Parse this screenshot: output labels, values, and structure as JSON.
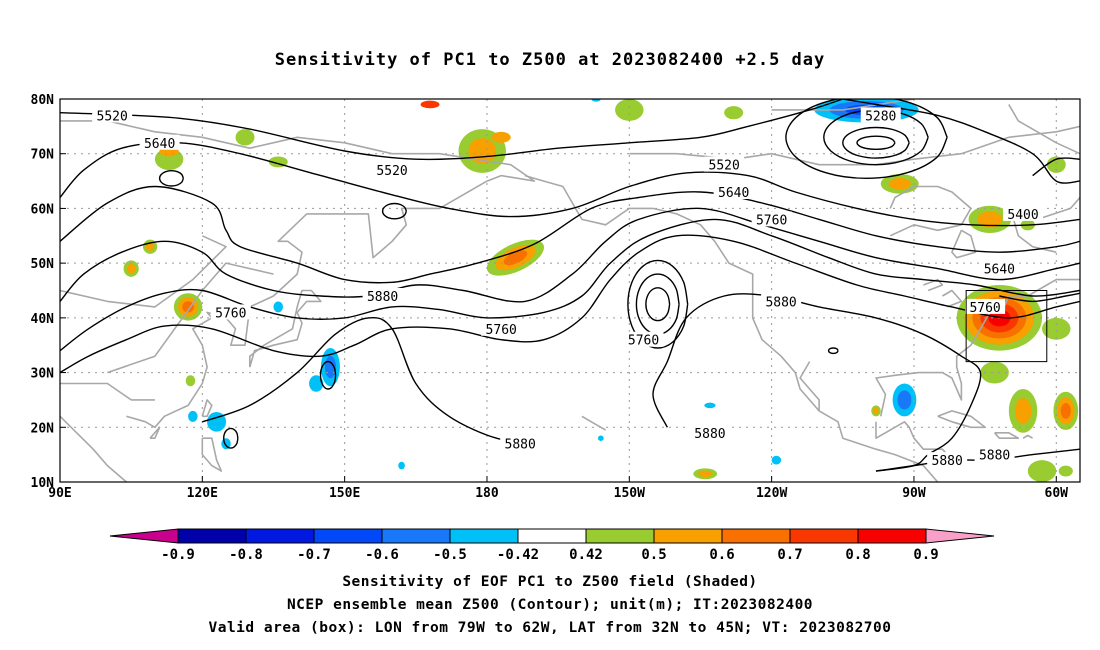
{
  "title": "Sensitivity of PC1 to Z500 at 2023082400 +2.5 day",
  "map": {
    "lon_range": [
      90,
      305
    ],
    "lat_range": [
      10,
      80
    ],
    "lat_ticks": [
      "80N",
      "70N",
      "60N",
      "50N",
      "40N",
      "30N",
      "20N",
      "10N"
    ],
    "lon_ticks": [
      "90E",
      "120E",
      "150E",
      "180",
      "150W",
      "120W",
      "90W",
      "60W"
    ],
    "valid_box": {
      "lon_west": -79,
      "lon_east": -62,
      "lat_south": 32,
      "lat_north": 45
    },
    "contour_labels": [
      {
        "text": "5520",
        "lon": 101,
        "lat": 77
      },
      {
        "text": "5640",
        "lon": 111,
        "lat": 72
      },
      {
        "text": "5520",
        "lon": 160,
        "lat": 67
      },
      {
        "text": "5520",
        "lon": 230,
        "lat": 68
      },
      {
        "text": "5640",
        "lon": 232,
        "lat": 63
      },
      {
        "text": "5760",
        "lon": 240,
        "lat": 58
      },
      {
        "text": "5280",
        "lon": 263,
        "lat": 77
      },
      {
        "text": "5400",
        "lon": 293,
        "lat": 59
      },
      {
        "text": "5640",
        "lon": 288,
        "lat": 49
      },
      {
        "text": "5760",
        "lon": 285,
        "lat": 42
      },
      {
        "text": "5880",
        "lon": 242,
        "lat": 43
      },
      {
        "text": "5880",
        "lon": 158,
        "lat": 44
      },
      {
        "text": "5760",
        "lon": 126,
        "lat": 41
      },
      {
        "text": "5760",
        "lon": 183,
        "lat": 38
      },
      {
        "text": "5760",
        "lon": 213,
        "lat": 36
      },
      {
        "text": "5880",
        "lon": 227,
        "lat": 19
      },
      {
        "text": "5880",
        "lon": 187,
        "lat": 17
      },
      {
        "text": "5880",
        "lon": 277,
        "lat": 14
      },
      {
        "text": "5880",
        "lon": 287,
        "lat": 15
      }
    ],
    "contour_color": "#000000",
    "coast_color": "#a8a8a8"
  },
  "colorbar": {
    "labels": [
      "-0.9",
      "-0.8",
      "-0.7",
      "-0.6",
      "-0.5",
      "-0.42",
      "0.42",
      "0.5",
      "0.6",
      "0.7",
      "0.8",
      "0.9"
    ],
    "colors": [
      "#0000a8",
      "#0018e0",
      "#0048f8",
      "#1878f8",
      "#00c0f8",
      "#ffffff",
      "#98cc30",
      "#f8a000",
      "#f87000",
      "#f83800",
      "#f80000"
    ],
    "low_end_color": "#c8008c",
    "high_end_color": "#f8a0c8"
  },
  "captions": [
    "Sensitivity of EOF PC1 to Z500 field (Shaded)",
    "NCEP ensemble mean Z500 (Contour); unit(m); IT:2023082400",
    "Valid area (box): LON from 79W to 62W, LAT from 32N to 45N; VT: 2023082700"
  ]
}
